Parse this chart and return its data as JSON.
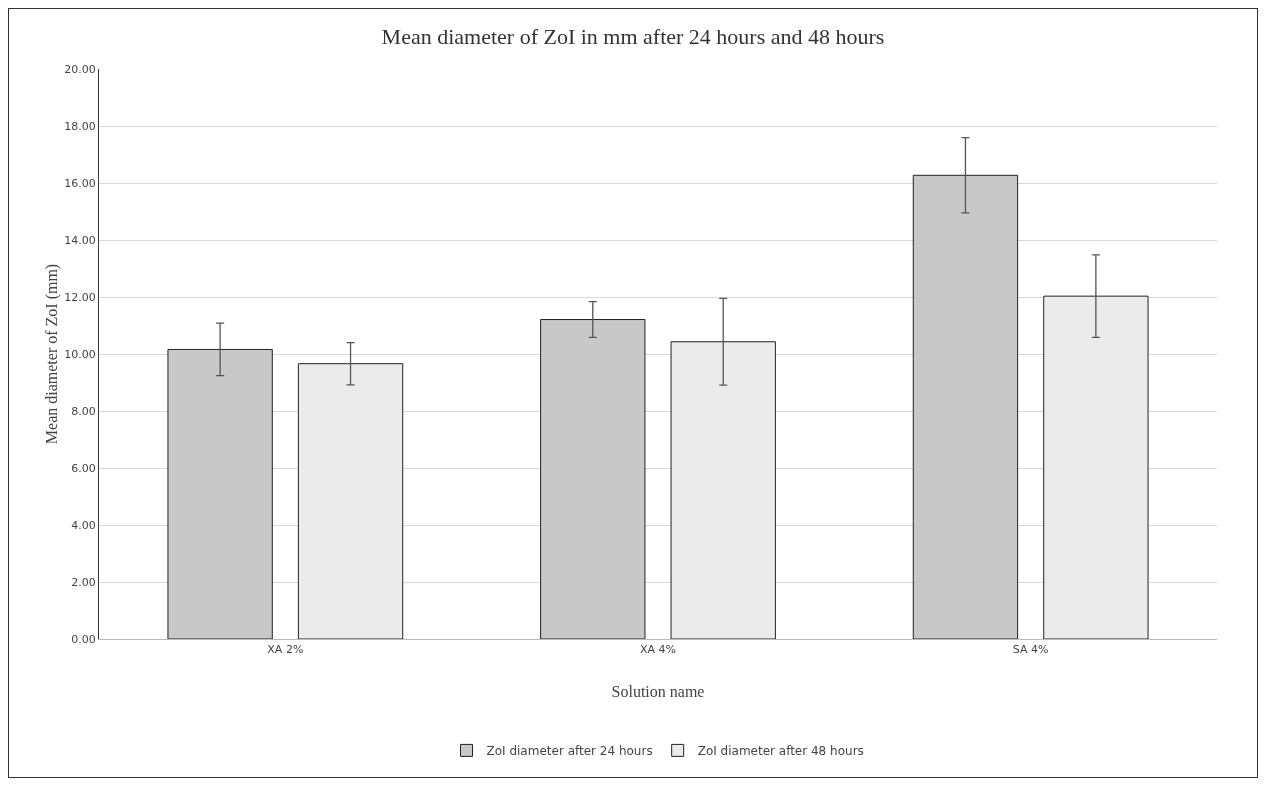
{
  "chart_data": {
    "type": "bar",
    "title": "Mean diameter of ZoI in mm after 24 hours and 48 hours",
    "xlabel": "Solution name",
    "ylabel": "Mean diameter of ZoI (mm)",
    "categories": [
      "XA 2%",
      "XA 4%",
      "SA 4%"
    ],
    "series": [
      {
        "name": "ZoI diameter after 24 hours",
        "color": "#c8c8c8",
        "values": [
          10.16,
          11.21,
          16.27
        ],
        "errors": [
          0.92,
          0.63,
          1.32
        ]
      },
      {
        "name": "ZoI diameter after 48 hours",
        "color": "#ebebeb",
        "values": [
          9.66,
          10.43,
          12.03
        ],
        "errors": [
          0.74,
          1.52,
          1.45
        ]
      }
    ],
    "ylim": [
      0,
      20
    ],
    "yticks": [
      {
        "value": 0,
        "label": "0.00"
      },
      {
        "value": 2,
        "label": "2.00"
      },
      {
        "value": 4,
        "label": "4.00"
      },
      {
        "value": 6,
        "label": "6.00"
      },
      {
        "value": 8,
        "label": "8.00"
      },
      {
        "value": 10,
        "label": "10.00"
      },
      {
        "value": 12,
        "label": "12.00"
      },
      {
        "value": 14,
        "label": "14.00"
      },
      {
        "value": 16,
        "label": "16.00"
      },
      {
        "value": 18,
        "label": "18.00"
      },
      {
        "value": 20,
        "label": "20.00"
      }
    ],
    "grid": "y",
    "legend": "bottom"
  }
}
